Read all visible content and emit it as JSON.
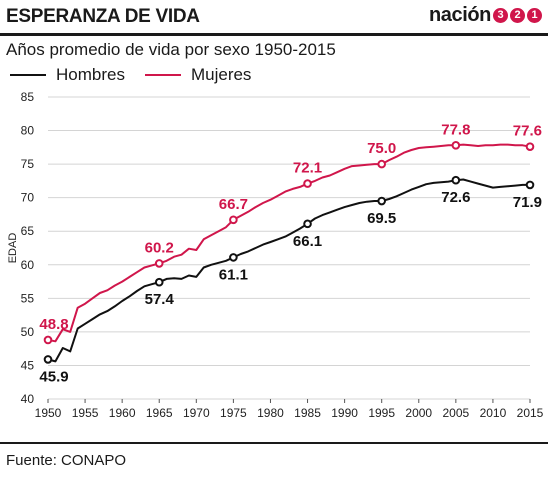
{
  "header": {
    "title": "ESPERANZA DE VIDA",
    "logo_text": "nación",
    "logo_digits": [
      "3",
      "2",
      "1"
    ]
  },
  "subtitle": "Años promedio de vida por sexo 1950-2015",
  "source": "Fuente: CONAPO",
  "colors": {
    "hombres": "#111111",
    "mujeres": "#d0164b",
    "grid": "#d4d4d4"
  },
  "chart_data": {
    "type": "line",
    "ylabel": "EDAD",
    "xlim": [
      1950,
      2015
    ],
    "ylim": [
      40,
      85
    ],
    "xticks": [
      1950,
      1955,
      1960,
      1965,
      1970,
      1975,
      1980,
      1985,
      1990,
      1995,
      2000,
      2005,
      2010,
      2015
    ],
    "yticks": [
      40,
      45,
      50,
      55,
      60,
      65,
      70,
      75,
      80,
      85
    ],
    "grid": true,
    "legend": "top-left",
    "series": [
      {
        "name": "Hombres",
        "color": "#111111",
        "x": [
          1950,
          1951,
          1952,
          1953,
          1954,
          1955,
          1956,
          1957,
          1958,
          1959,
          1960,
          1961,
          1962,
          1963,
          1964,
          1965,
          1966,
          1967,
          1968,
          1969,
          1970,
          1971,
          1972,
          1973,
          1974,
          1975,
          1976,
          1977,
          1978,
          1979,
          1980,
          1981,
          1982,
          1983,
          1984,
          1985,
          1986,
          1987,
          1988,
          1989,
          1990,
          1991,
          1992,
          1993,
          1994,
          1995,
          1996,
          1997,
          1998,
          1999,
          2000,
          2001,
          2002,
          2003,
          2004,
          2005,
          2006,
          2007,
          2008,
          2009,
          2010,
          2011,
          2012,
          2013,
          2014,
          2015
        ],
        "y": [
          45.9,
          45.6,
          47.6,
          47.1,
          50.5,
          51.2,
          51.9,
          52.6,
          53.1,
          53.8,
          54.6,
          55.3,
          56.1,
          56.8,
          57.1,
          57.4,
          57.9,
          58.0,
          57.9,
          58.4,
          58.2,
          59.6,
          60.0,
          60.3,
          60.6,
          61.1,
          61.6,
          62.0,
          62.5,
          63.0,
          63.4,
          63.8,
          64.2,
          64.8,
          65.4,
          66.1,
          66.9,
          67.4,
          67.8,
          68.2,
          68.6,
          68.9,
          69.2,
          69.4,
          69.5,
          69.5,
          69.8,
          70.2,
          70.7,
          71.2,
          71.6,
          72.0,
          72.2,
          72.3,
          72.4,
          72.6,
          72.7,
          72.4,
          72.1,
          71.8,
          71.5,
          71.6,
          71.7,
          71.8,
          71.9,
          71.9
        ],
        "labels": [
          {
            "x": 1950,
            "y": 45.9,
            "text": "45.9"
          },
          {
            "x": 1965,
            "y": 57.4,
            "text": "57.4"
          },
          {
            "x": 1975,
            "y": 61.1,
            "text": "61.1"
          },
          {
            "x": 1985,
            "y": 66.1,
            "text": "66.1"
          },
          {
            "x": 1995,
            "y": 69.5,
            "text": "69.5"
          },
          {
            "x": 2005,
            "y": 72.6,
            "text": "72.6"
          },
          {
            "x": 2015,
            "y": 71.9,
            "text": "71.9"
          }
        ]
      },
      {
        "name": "Mujeres",
        "color": "#d0164b",
        "x": [
          1950,
          1951,
          1952,
          1953,
          1954,
          1955,
          1956,
          1957,
          1958,
          1959,
          1960,
          1961,
          1962,
          1963,
          1964,
          1965,
          1966,
          1967,
          1968,
          1969,
          1970,
          1971,
          1972,
          1973,
          1974,
          1975,
          1976,
          1977,
          1978,
          1979,
          1980,
          1981,
          1982,
          1983,
          1984,
          1985,
          1986,
          1987,
          1988,
          1989,
          1990,
          1991,
          1992,
          1993,
          1994,
          1995,
          1996,
          1997,
          1998,
          1999,
          2000,
          2001,
          2002,
          2003,
          2004,
          2005,
          2006,
          2007,
          2008,
          2009,
          2010,
          2011,
          2012,
          2013,
          2014,
          2015
        ],
        "y": [
          48.8,
          48.6,
          50.4,
          50.0,
          53.6,
          54.2,
          55.0,
          55.8,
          56.2,
          56.9,
          57.5,
          58.2,
          58.9,
          59.6,
          59.9,
          60.2,
          60.6,
          61.2,
          61.5,
          62.4,
          62.2,
          63.8,
          64.4,
          65.0,
          65.6,
          66.7,
          67.3,
          67.9,
          68.6,
          69.2,
          69.7,
          70.3,
          70.9,
          71.3,
          71.6,
          72.1,
          72.5,
          73.0,
          73.3,
          73.8,
          74.3,
          74.7,
          74.8,
          74.9,
          75.0,
          75.0,
          75.6,
          76.1,
          76.7,
          77.1,
          77.4,
          77.5,
          77.6,
          77.7,
          77.8,
          77.8,
          77.9,
          77.8,
          77.7,
          77.8,
          77.8,
          77.9,
          77.9,
          77.8,
          77.8,
          77.6
        ],
        "labels": [
          {
            "x": 1950,
            "y": 48.8,
            "text": "48.8"
          },
          {
            "x": 1965,
            "y": 60.2,
            "text": "60.2"
          },
          {
            "x": 1975,
            "y": 66.7,
            "text": "66.7"
          },
          {
            "x": 1985,
            "y": 72.1,
            "text": "72.1"
          },
          {
            "x": 1995,
            "y": 75.0,
            "text": "75.0"
          },
          {
            "x": 2005,
            "y": 77.8,
            "text": "77.8"
          },
          {
            "x": 2015,
            "y": 77.6,
            "text": "77.6"
          }
        ]
      }
    ]
  }
}
